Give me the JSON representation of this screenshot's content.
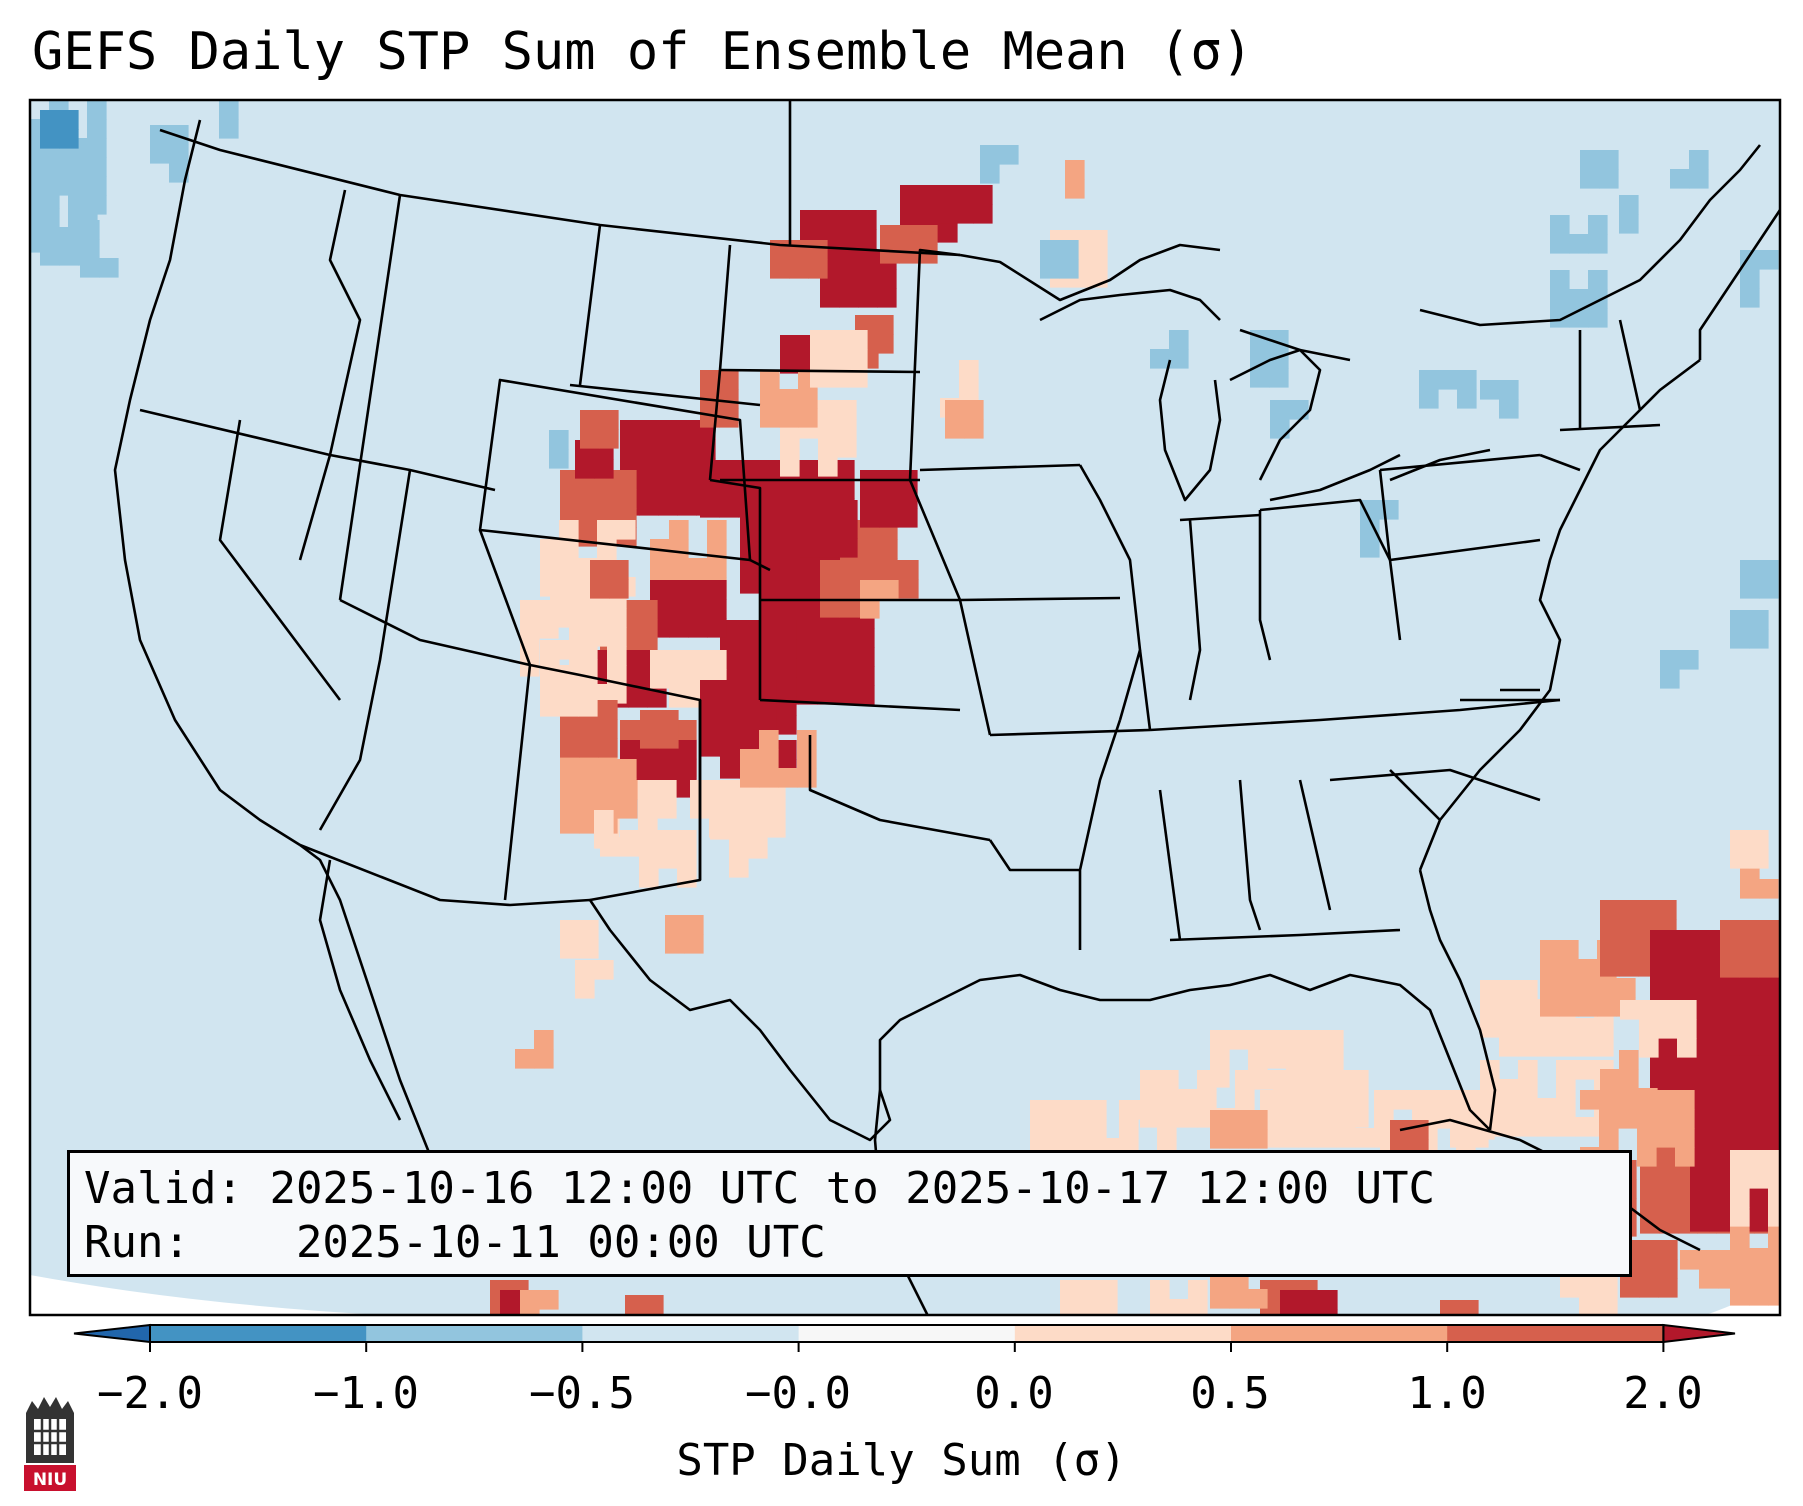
{
  "title": "GEFS Daily STP Sum of Ensemble Mean (σ)",
  "info": {
    "valid_label": "Valid:",
    "valid_value": "2025-10-16 12:00 UTC to 2025-10-17 12:00 UTC",
    "run_label": "Run:",
    "run_value": "2025-10-11 00:00 UTC"
  },
  "colorbar": {
    "label": "STP Daily Sum (σ)",
    "ticks": [
      "−2.0",
      "−1.0",
      "−0.5",
      "−0.0",
      "0.0",
      "0.5",
      "1.0",
      "2.0"
    ],
    "bins": [
      {
        "range": [
          -2.0,
          -1.0
        ],
        "color": "#4393c3"
      },
      {
        "range": [
          -1.0,
          -0.5
        ],
        "color": "#92c5de"
      },
      {
        "range": [
          -0.5,
          -0.0
        ],
        "color": "#d1e5f0"
      },
      {
        "range": [
          -0.0,
          0.0
        ],
        "color": "#f7f7f7"
      },
      {
        "range": [
          0.0,
          0.5
        ],
        "color": "#fddbc7"
      },
      {
        "range": [
          0.5,
          1.0
        ],
        "color": "#f4a582"
      },
      {
        "range": [
          1.0,
          2.0
        ],
        "color": "#d6604d"
      }
    ],
    "extend_low_color": "#2166ac",
    "extend_high_color": "#b2182b"
  },
  "map": {
    "background_color": "#d1e5f0",
    "projection": "Lambert conformal, CONUS",
    "high_regions": [
      "Northern Plains / North Dakota",
      "Central and Southern High Plains",
      "Western Atlantic near Bahamas"
    ],
    "low_regions": [
      "Pacific Northwest offshore",
      "Great Lakes",
      "New England"
    ]
  },
  "logo": {
    "text": "NIU"
  }
}
